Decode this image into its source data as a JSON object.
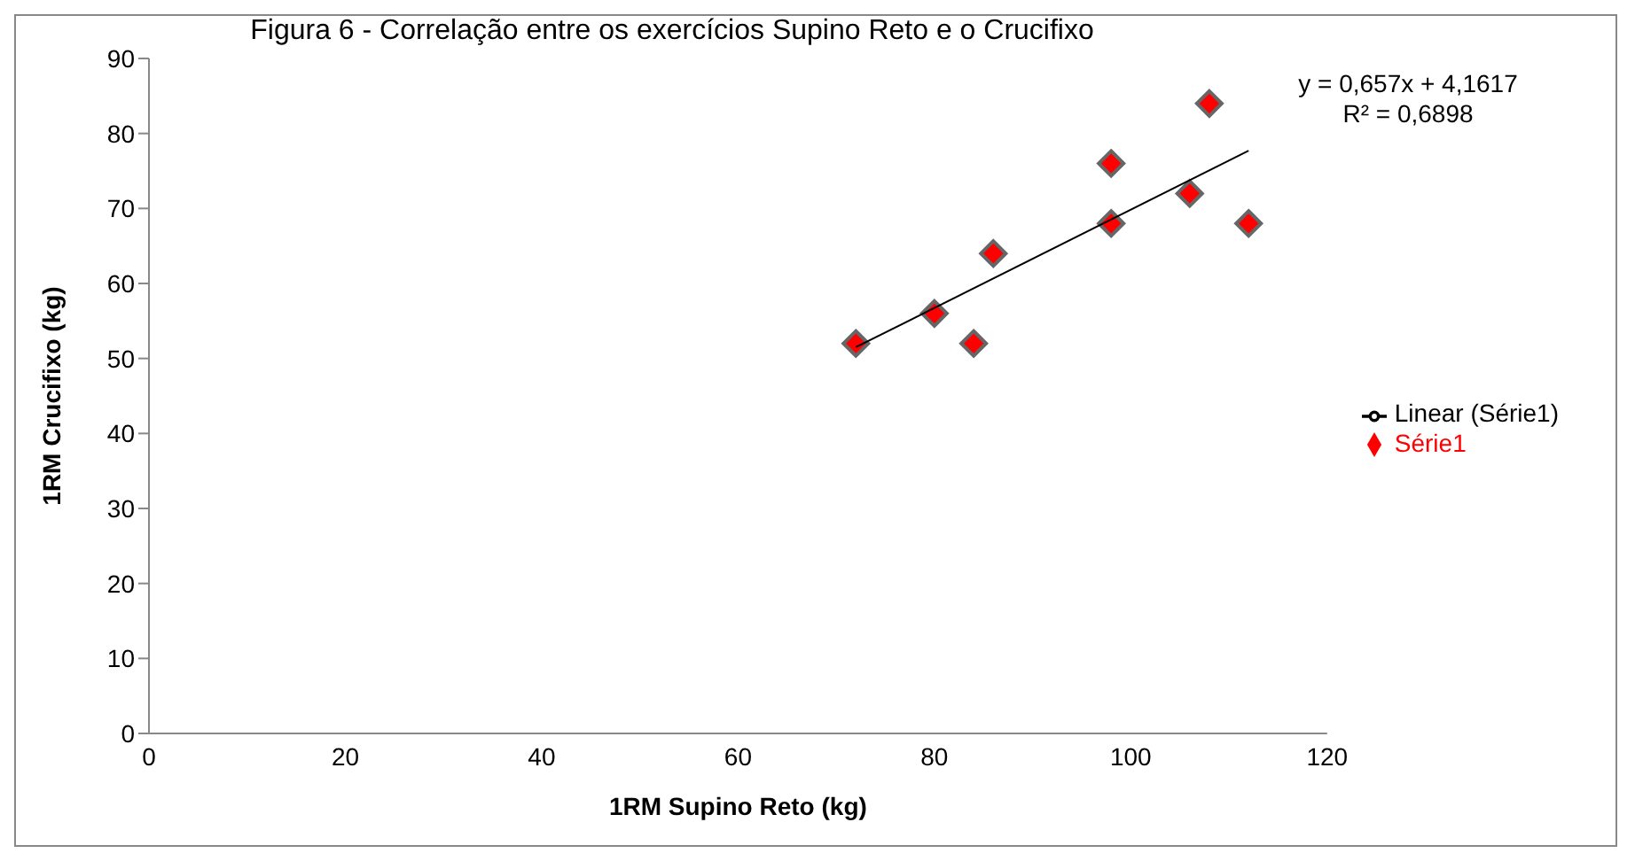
{
  "chart_data": {
    "type": "scatter",
    "title": "Figura 6 - Correlação entre os exercícios Supino Reto e o Crucifixo",
    "xlabel": "1RM Supino Reto (kg)",
    "ylabel": "1RM Crucifixo (kg)",
    "x": [
      72,
      80,
      84,
      86,
      98,
      98,
      106,
      108,
      112
    ],
    "series": [
      {
        "name": "Série1",
        "color": "#ff0000",
        "values": [
          52,
          56,
          52,
          64,
          68,
          76,
          72,
          84,
          68
        ],
        "marker": "diamond"
      },
      {
        "name": "Linear (Série1)",
        "type": "line",
        "color": "#000000",
        "x": [
          72,
          112
        ],
        "values": [
          51.5,
          77.7
        ],
        "marker": "none"
      }
    ],
    "annotations": [
      "y = 0,657x + 4,1617",
      "R² = 0,6898"
    ],
    "xlim": [
      0,
      120
    ],
    "xticks": [
      0,
      20,
      40,
      60,
      80,
      100,
      120
    ],
    "ylim": [
      0,
      90
    ],
    "yticks": [
      0,
      10,
      20,
      30,
      40,
      50,
      60,
      70,
      80,
      90
    ],
    "grid": false,
    "legend": "right"
  }
}
